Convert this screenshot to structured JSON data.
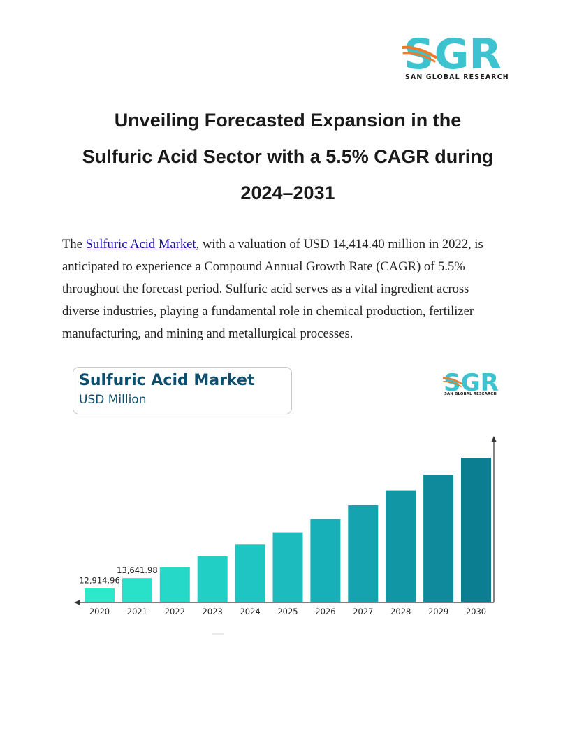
{
  "header": {
    "logo_text": "SGR",
    "logo_subtitle": "SAN GLOBAL RESEARCH"
  },
  "title": {
    "line1": "Unveiling Forecasted Expansion in the",
    "line2": "Sulfuric Acid Sector with a 5.5% CAGR during",
    "line3": "2024–2031"
  },
  "body": {
    "prefix": "The ",
    "link_text": "Sulfuric Acid Market",
    "rest": ", with a valuation of USD 14,414.40 million in 2022, is anticipated to experience a Compound Annual Growth Rate (CAGR) of 5.5% throughout the forecast period. Sulfuric acid serves as a vital ingredient across diverse industries, playing a fundamental role in chemical production, fertilizer manufacturing, and mining and metallurgical processes."
  },
  "chart_header": {
    "title": "Sulfuric Acid Market",
    "subtitle": "USD Million",
    "logo_text": "SGR",
    "logo_subtitle": "SAN GLOBAL RESEARCH"
  },
  "colors": {
    "brand_teal": "#3cc3cf",
    "brand_orange": "#f07a2a",
    "title_navy": "#0c4e6e",
    "link": "#1a0dab"
  },
  "chart_data": {
    "type": "bar",
    "title": "Sulfuric Acid Market",
    "ylabel": "USD Million",
    "xlabel": "",
    "categories": [
      "2020",
      "2021",
      "2022",
      "2023",
      "2024",
      "2025",
      "2026",
      "2027",
      "2028",
      "2029",
      "2030"
    ],
    "values": [
      12914.96,
      13641.98,
      14414.4,
      15201,
      16035,
      16920,
      17870,
      18860,
      19920,
      21050,
      22250
    ],
    "data_labels": [
      "12,914.96",
      "13,641.98",
      "",
      "",
      "",
      "",
      "",
      "",
      "",
      "",
      ""
    ],
    "ylim": [
      11900,
      22700
    ],
    "bar_colors": [
      "#2de8cb",
      "#29e0c9",
      "#26d8c7",
      "#22cfc5",
      "#1ec5c2",
      "#1bbbbe",
      "#17b0b8",
      "#14a3af",
      "#1196a5",
      "#0e8a9c",
      "#0b7e92"
    ],
    "grid": false,
    "legend": "none"
  }
}
